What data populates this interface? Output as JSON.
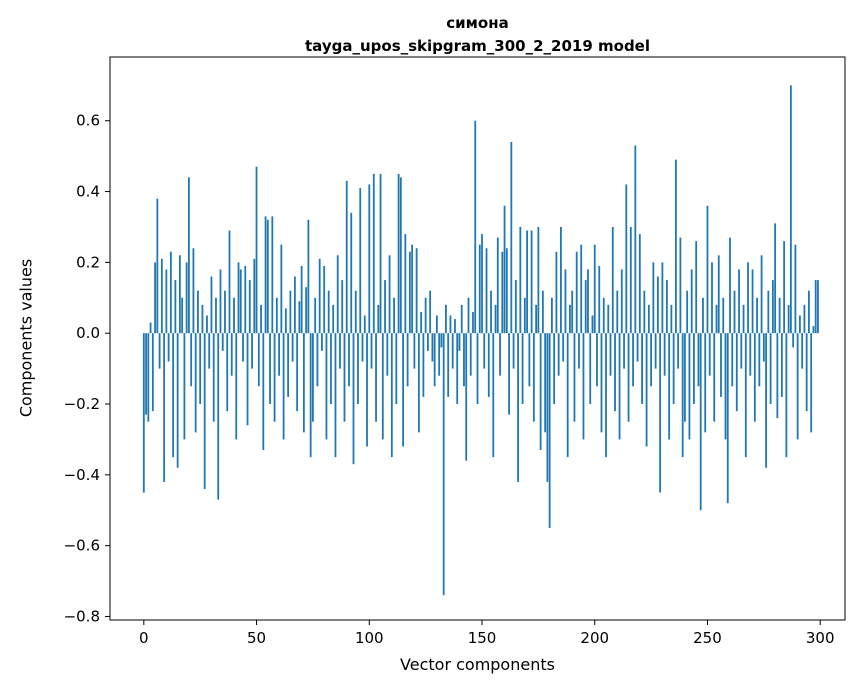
{
  "chart_data": {
    "type": "bar",
    "title": "симона",
    "subtitle": "tayga_upos_skipgram_300_2_2019 model",
    "xlabel": "Vector components",
    "ylabel": "Components values",
    "bar_color": "#1f77b4",
    "background_color": "#ffffff",
    "grid": false,
    "legend": "none",
    "xlim": [
      -15,
      311
    ],
    "ylim": [
      -0.81,
      0.78
    ],
    "xticks": {
      "values": [
        0,
        50,
        100,
        150,
        200,
        250,
        300
      ],
      "labels": [
        "0",
        "50",
        "100",
        "150",
        "200",
        "250",
        "300"
      ]
    },
    "yticks": {
      "values": [
        0.6,
        0.4,
        0.2,
        0.0,
        -0.2,
        -0.4,
        -0.6,
        -0.8
      ],
      "labels": [
        "0.6",
        "0.4",
        "0.2",
        "0.0",
        "−0.2",
        "−0.4",
        "−0.6",
        "−0.8"
      ]
    },
    "x": "index 0..299",
    "values": [
      -0.45,
      -0.23,
      -0.25,
      0.03,
      -0.22,
      0.2,
      0.38,
      -0.1,
      0.21,
      -0.42,
      0.18,
      -0.08,
      0.23,
      -0.35,
      0.15,
      -0.38,
      0.22,
      0.1,
      -0.3,
      0.2,
      0.44,
      -0.15,
      0.24,
      -0.28,
      0.12,
      -0.2,
      0.08,
      -0.44,
      0.05,
      -0.1,
      0.16,
      -0.25,
      0.1,
      -0.47,
      0.18,
      -0.05,
      0.12,
      -0.22,
      0.29,
      -0.12,
      0.1,
      -0.3,
      0.2,
      0.18,
      -0.08,
      0.19,
      -0.26,
      0.15,
      -0.1,
      0.21,
      0.47,
      -0.15,
      0.08,
      -0.33,
      0.33,
      0.32,
      -0.2,
      0.33,
      -0.25,
      0.1,
      -0.12,
      0.25,
      -0.3,
      0.07,
      -0.18,
      0.12,
      -0.08,
      0.16,
      -0.22,
      0.09,
      0.19,
      -0.28,
      0.13,
      0.32,
      -0.35,
      -0.25,
      0.1,
      -0.15,
      0.21,
      -0.05,
      0.19,
      -0.3,
      0.12,
      -0.2,
      0.08,
      -0.35,
      0.22,
      -0.1,
      0.15,
      -0.25,
      0.43,
      -0.15,
      0.34,
      -0.37,
      0.12,
      -0.2,
      0.41,
      -0.08,
      0.05,
      -0.32,
      0.42,
      -0.1,
      0.45,
      -0.25,
      0.08,
      0.45,
      -0.3,
      0.15,
      -0.12,
      0.22,
      -0.35,
      0.1,
      -0.2,
      0.45,
      0.44,
      -0.32,
      0.28,
      -0.15,
      0.23,
      0.25,
      -0.1,
      0.24,
      -0.28,
      0.06,
      -0.18,
      0.1,
      -0.05,
      0.12,
      -0.08,
      -0.15,
      0.05,
      -0.12,
      -0.04,
      -0.74,
      0.08,
      -0.18,
      0.05,
      -0.1,
      0.04,
      -0.2,
      -0.05,
      0.08,
      -0.15,
      -0.36,
      0.1,
      -0.12,
      0.06,
      0.6,
      -0.2,
      0.25,
      0.28,
      -0.1,
      0.24,
      -0.18,
      0.12,
      -0.35,
      0.08,
      0.27,
      -0.12,
      0.23,
      0.36,
      0.24,
      -0.23,
      0.54,
      -0.1,
      0.15,
      -0.42,
      0.3,
      -0.2,
      0.1,
      0.29,
      -0.15,
      0.29,
      -0.25,
      0.08,
      0.3,
      -0.33,
      0.12,
      -0.28,
      -0.42,
      -0.55,
      0.1,
      -0.2,
      0.23,
      -0.12,
      0.3,
      -0.08,
      0.18,
      -0.35,
      0.08,
      0.12,
      -0.25,
      0.23,
      -0.1,
      0.25,
      -0.3,
      0.15,
      0.18,
      -0.2,
      0.05,
      0.25,
      -0.15,
      0.19,
      -0.28,
      0.1,
      -0.35,
      0.08,
      -0.12,
      0.3,
      -0.22,
      0.12,
      -0.3,
      0.18,
      -0.1,
      0.42,
      -0.25,
      0.3,
      -0.15,
      0.53,
      -0.08,
      0.28,
      -0.2,
      0.12,
      -0.32,
      0.08,
      -0.15,
      0.2,
      -0.1,
      0.16,
      -0.45,
      0.2,
      -0.12,
      0.15,
      -0.3,
      0.08,
      -0.2,
      0.49,
      -0.1,
      0.27,
      -0.35,
      -0.25,
      0.12,
      -0.3,
      0.18,
      -0.2,
      0.26,
      -0.15,
      -0.5,
      0.1,
      -0.28,
      0.36,
      -0.12,
      0.2,
      -0.25,
      0.08,
      0.22,
      -0.18,
      0.1,
      -0.3,
      -0.48,
      0.27,
      -0.15,
      0.12,
      -0.22,
      0.18,
      -0.1,
      0.08,
      -0.35,
      0.2,
      -0.12,
      0.18,
      -0.25,
      0.1,
      -0.15,
      0.22,
      -0.08,
      -0.38,
      0.12,
      -0.2,
      0.15,
      0.31,
      -0.24,
      0.1,
      -0.18,
      0.26,
      -0.35,
      0.08,
      0.7,
      -0.04,
      0.25,
      -0.3,
      0.05,
      -0.1,
      0.08,
      -0.22,
      0.12,
      -0.28,
      0.02,
      0.15,
      0.15
    ]
  }
}
